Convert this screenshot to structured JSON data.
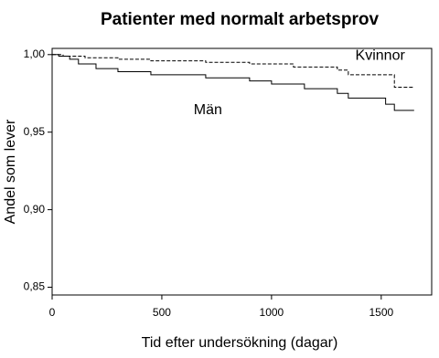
{
  "chart_data": {
    "type": "line",
    "step": "post",
    "title": "Patienter med normalt arbetsprov",
    "x_label": "Tid efter undersökning (dagar)",
    "y_label": "Andel som lever",
    "xlim": [
      0,
      1730
    ],
    "xticks": [
      0,
      500,
      1000,
      1500
    ],
    "ylim": [
      0.845,
      1.004
    ],
    "yticks": [
      {
        "value": 0.85,
        "label": "0,85"
      },
      {
        "value": 0.9,
        "label": "0,90"
      },
      {
        "value": 0.95,
        "label": "0,95"
      },
      {
        "value": 1.0,
        "label": "1,00"
      }
    ],
    "series": [
      {
        "name": "Kvinnor",
        "color": "#000000",
        "dashed": true,
        "x": [
          0,
          50,
          150,
          300,
          450,
          700,
          900,
          1100,
          1300,
          1350,
          1560,
          1650
        ],
        "values": [
          1.0,
          0.999,
          0.998,
          0.997,
          0.996,
          0.995,
          0.994,
          0.992,
          0.99,
          0.987,
          0.979,
          0.979
        ]
      },
      {
        "name": "Män",
        "color": "#000000",
        "dashed": false,
        "x": [
          0,
          30,
          80,
          120,
          200,
          300,
          450,
          700,
          900,
          1000,
          1150,
          1300,
          1350,
          1520,
          1560,
          1650
        ],
        "values": [
          1.0,
          0.999,
          0.997,
          0.994,
          0.991,
          0.989,
          0.987,
          0.985,
          0.983,
          0.981,
          0.978,
          0.975,
          0.972,
          0.968,
          0.964,
          0.964
        ]
      }
    ]
  }
}
